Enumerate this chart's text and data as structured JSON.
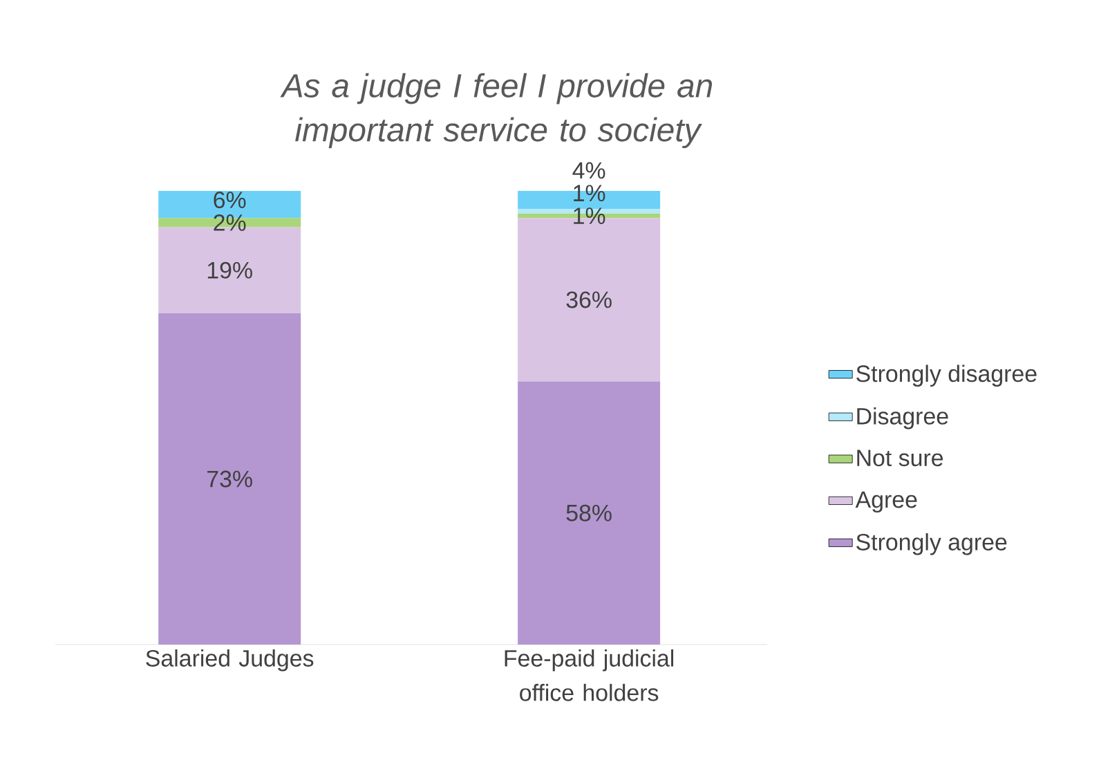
{
  "chart_data": {
    "type": "bar",
    "stacked": true,
    "title": "As a judge I feel I provide an important service to society",
    "categories": [
      "Salaried Judges",
      "Fee-paid judicial office holders"
    ],
    "series": [
      {
        "name": "Strongly agree",
        "color": "#b497d0",
        "values": [
          73,
          58
        ],
        "value_labels": [
          "73%",
          "58%"
        ]
      },
      {
        "name": "Agree",
        "color": "#d9c5e3",
        "values": [
          19,
          36
        ],
        "value_labels": [
          "19%",
          "36%"
        ]
      },
      {
        "name": "Not sure",
        "color": "#a9d67a",
        "values": [
          2,
          1
        ],
        "value_labels": [
          "2%",
          "1%"
        ]
      },
      {
        "name": "Disagree",
        "color": "#b3e9f9",
        "values": [
          null,
          1
        ],
        "value_labels": [
          null,
          "1%"
        ]
      },
      {
        "name": "Strongly disagree",
        "color": "#6dd1f7",
        "values": [
          6,
          4
        ],
        "value_labels": [
          "6%",
          "4%"
        ]
      }
    ],
    "tick_labels": "x",
    "legend": "right"
  }
}
